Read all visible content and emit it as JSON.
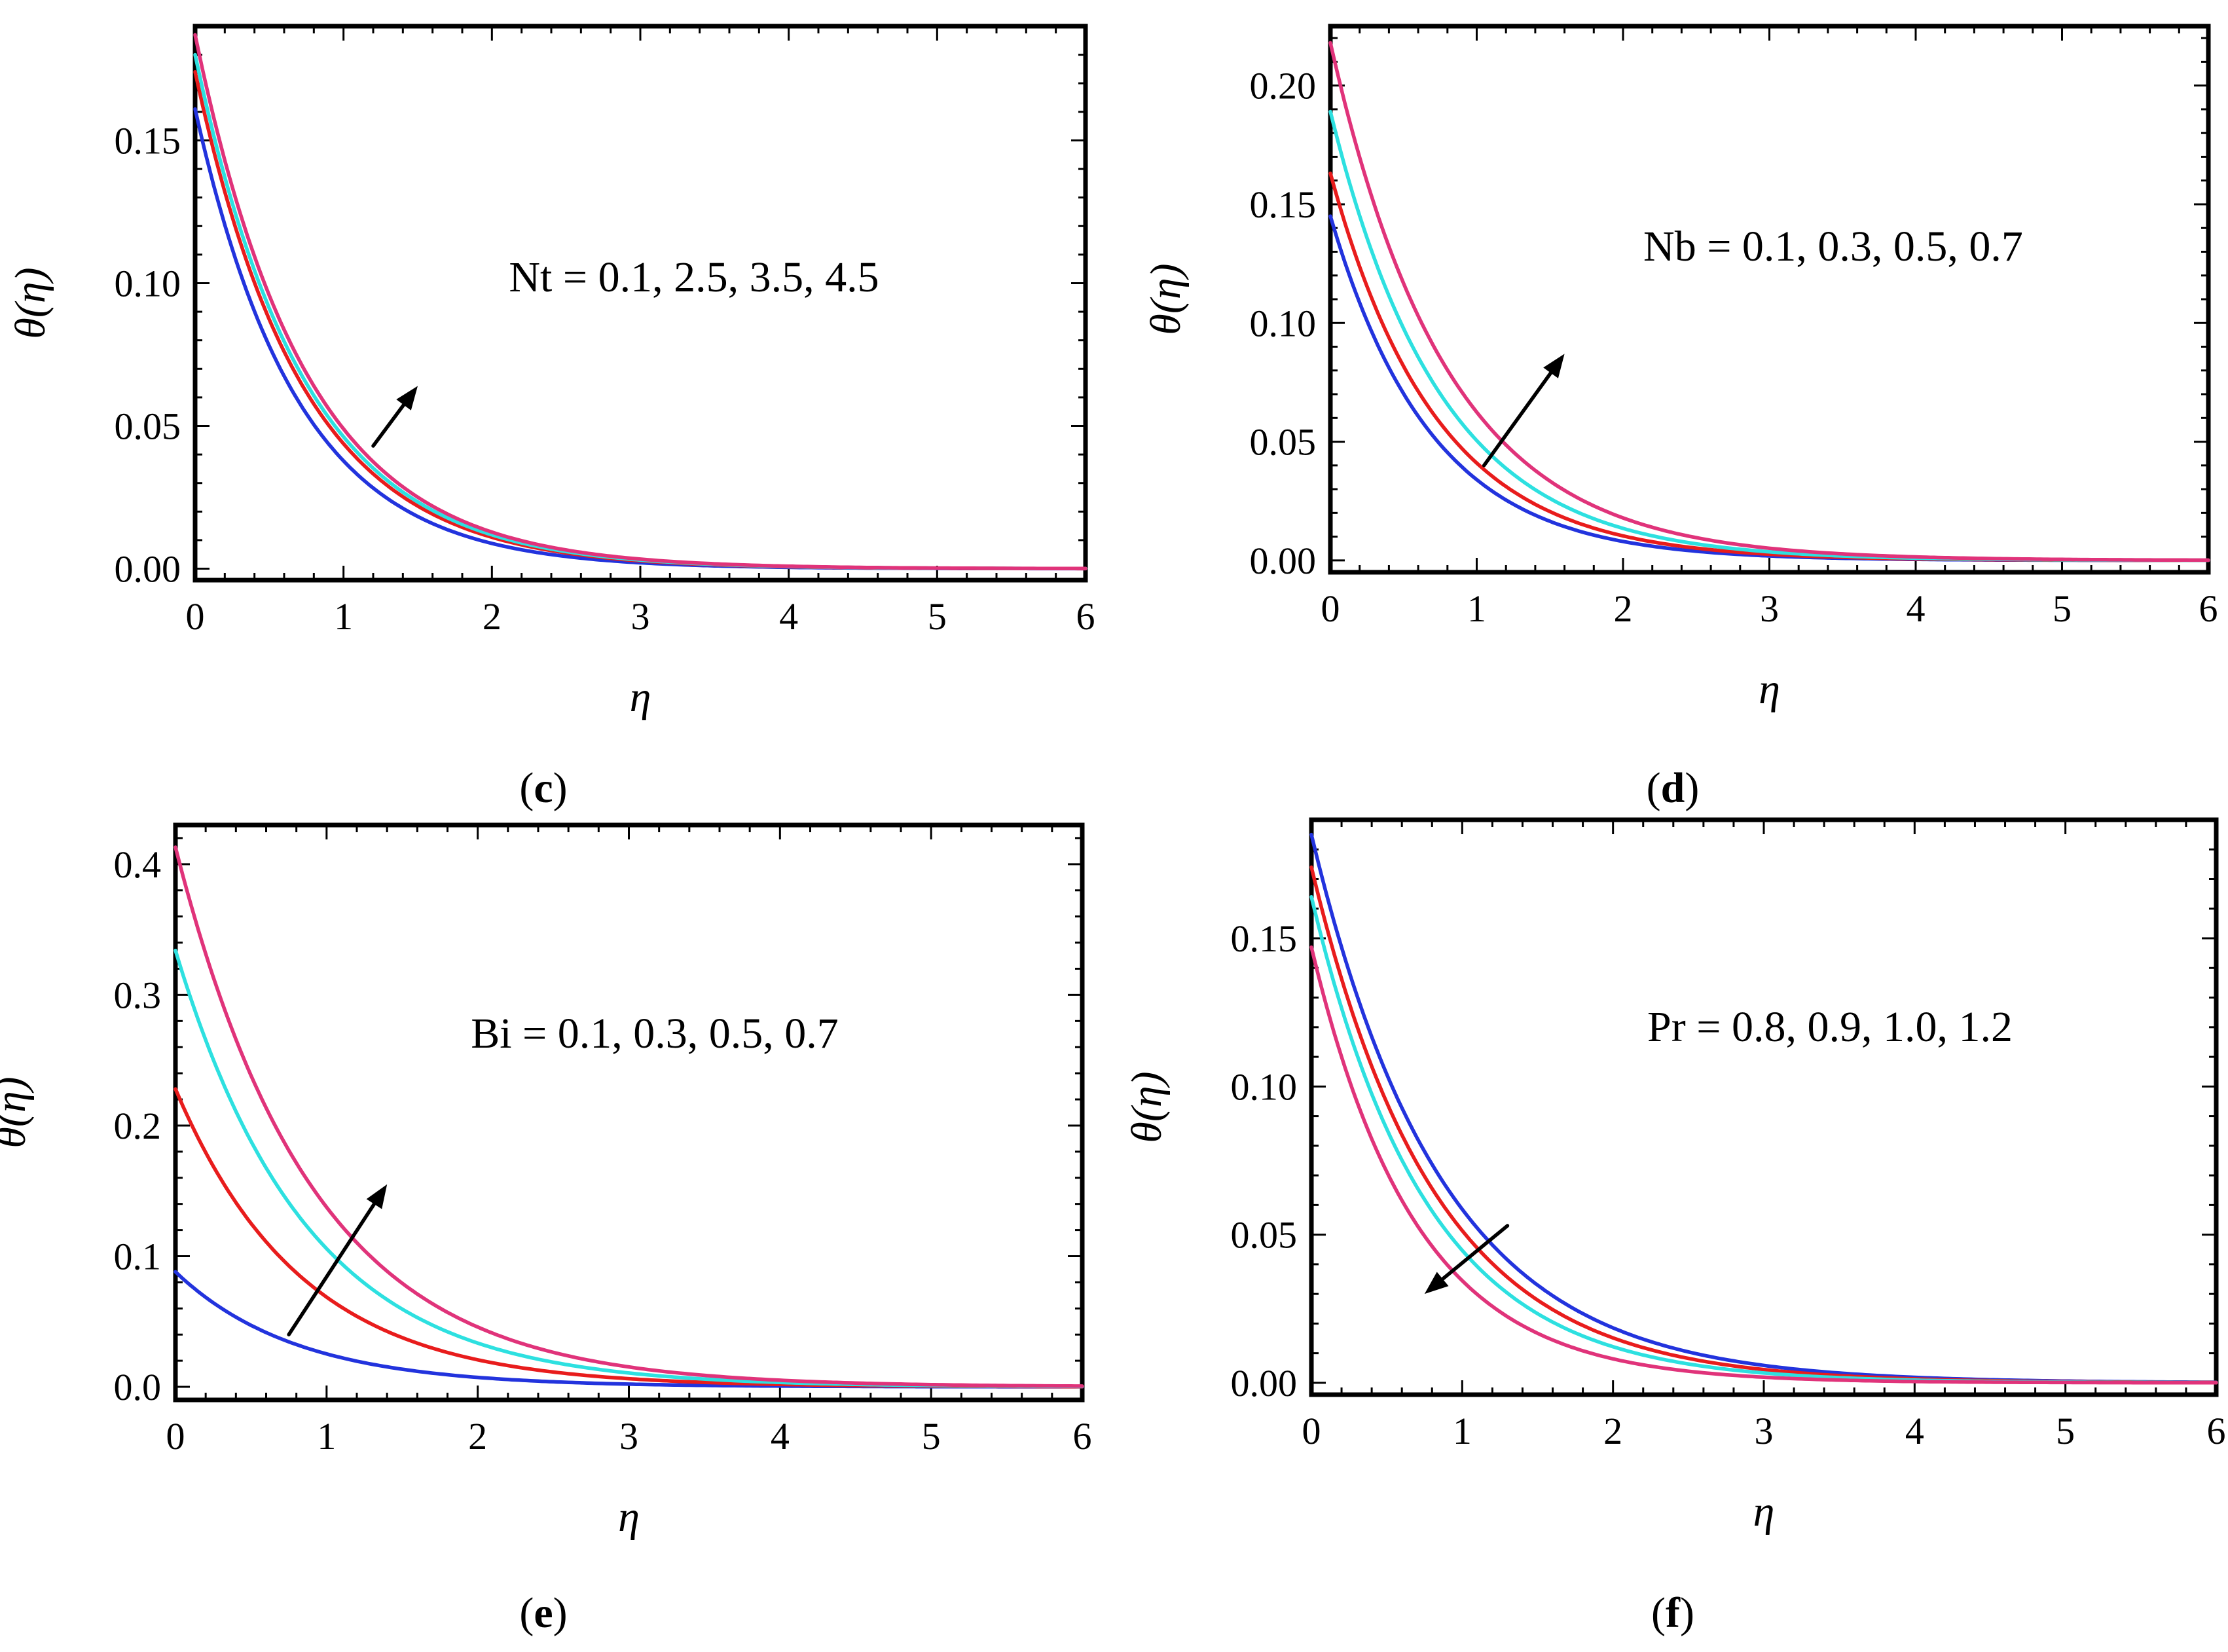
{
  "colors": {
    "series": [
      "#2233dd",
      "#e81c1c",
      "#2de0e0",
      "#e0337a"
    ],
    "frame": "#000000",
    "arrow": "#000000"
  },
  "chart_data": [
    {
      "type": "line",
      "panel": "c",
      "xlabel": "η",
      "ylabel": "θ(η)",
      "xlim": [
        0,
        6
      ],
      "ylim": [
        -0.004,
        0.19
      ],
      "xticks": [
        0,
        1,
        2,
        3,
        4,
        5,
        6
      ],
      "yticks": [
        0.0,
        0.05,
        0.1,
        0.15
      ],
      "ytick_labels": [
        "0.00",
        "0.05",
        "0.10",
        "0.15"
      ],
      "annotation": "Nt = 0.1, 2.5, 3.5, 4.5",
      "arrow": {
        "from": [
          1.2,
          0.043
        ],
        "to": [
          1.5,
          0.064
        ],
        "direction": "increasing"
      },
      "series": [
        {
          "name": "Nt = 0.1",
          "theta0": 0.161,
          "decay": 1.45
        },
        {
          "name": "Nt = 2.5",
          "theta0": 0.174,
          "decay": 1.38
        },
        {
          "name": "Nt = 3.5",
          "theta0": 0.18,
          "decay": 1.36
        },
        {
          "name": "Nt = 4.5",
          "theta0": 0.187,
          "decay": 1.34
        }
      ]
    },
    {
      "type": "line",
      "panel": "d",
      "xlabel": "η",
      "ylabel": "θ(η)",
      "xlim": [
        0,
        6
      ],
      "ylim": [
        -0.005,
        0.225
      ],
      "xticks": [
        0,
        1,
        2,
        3,
        4,
        5,
        6
      ],
      "yticks": [
        0.0,
        0.05,
        0.1,
        0.15,
        0.2
      ],
      "ytick_labels": [
        "0.00",
        "0.05",
        "0.10",
        "0.15",
        "0.20"
      ],
      "annotation": "Nb = 0.1, 0.3, 0.5, 0.7",
      "arrow": {
        "from": [
          1.05,
          0.04
        ],
        "to": [
          1.6,
          0.087
        ],
        "direction": "increasing"
      },
      "series": [
        {
          "name": "Nb = 0.1",
          "theta0": 0.145,
          "decay": 1.45
        },
        {
          "name": "Nb = 0.3",
          "theta0": 0.163,
          "decay": 1.38
        },
        {
          "name": "Nb = 0.5",
          "theta0": 0.189,
          "decay": 1.32
        },
        {
          "name": "Nb = 0.7",
          "theta0": 0.218,
          "decay": 1.25
        }
      ]
    },
    {
      "type": "line",
      "panel": "e",
      "xlabel": "η",
      "ylabel": "θ(η)",
      "xlim": [
        0,
        6
      ],
      "ylim": [
        -0.01,
        0.43
      ],
      "xticks": [
        0,
        1,
        2,
        3,
        4,
        5,
        6
      ],
      "yticks": [
        0.0,
        0.1,
        0.2,
        0.3,
        0.4
      ],
      "ytick_labels": [
        "0.0",
        "0.1",
        "0.2",
        "0.3",
        "0.4"
      ],
      "annotation": "Bi = 0.1, 0.3, 0.5, 0.7",
      "arrow": {
        "from": [
          0.75,
          0.04
        ],
        "to": [
          1.4,
          0.155
        ],
        "direction": "increasing"
      },
      "series": [
        {
          "name": "Bi = 0.1",
          "theta0": 0.088,
          "decay": 1.25
        },
        {
          "name": "Bi = 0.3",
          "theta0": 0.228,
          "decay": 1.2
        },
        {
          "name": "Bi = 0.5",
          "theta0": 0.334,
          "decay": 1.15
        },
        {
          "name": "Bi = 0.7",
          "theta0": 0.413,
          "decay": 1.1
        }
      ]
    },
    {
      "type": "line",
      "panel": "f",
      "xlabel": "η",
      "ylabel": "θ(η)",
      "xlim": [
        0,
        6
      ],
      "ylim": [
        -0.004,
        0.19
      ],
      "xticks": [
        0,
        1,
        2,
        3,
        4,
        5,
        6
      ],
      "yticks": [
        0.0,
        0.05,
        0.1,
        0.15
      ],
      "ytick_labels": [
        "0.00",
        "0.05",
        "0.10",
        "0.15"
      ],
      "annotation": "Pr = 0.8, 0.9, 1.0, 1.2",
      "arrow": {
        "from": [
          1.3,
          0.053
        ],
        "to": [
          0.75,
          0.03
        ],
        "direction": "decreasing"
      },
      "series": [
        {
          "name": "Pr = 0.8",
          "theta0": 0.185,
          "decay": 1.15
        },
        {
          "name": "Pr = 0.9",
          "theta0": 0.174,
          "decay": 1.22
        },
        {
          "name": "Pr = 1.0",
          "theta0": 0.164,
          "decay": 1.3
        },
        {
          "name": "Pr = 1.2",
          "theta0": 0.147,
          "decay": 1.45
        }
      ]
    }
  ]
}
